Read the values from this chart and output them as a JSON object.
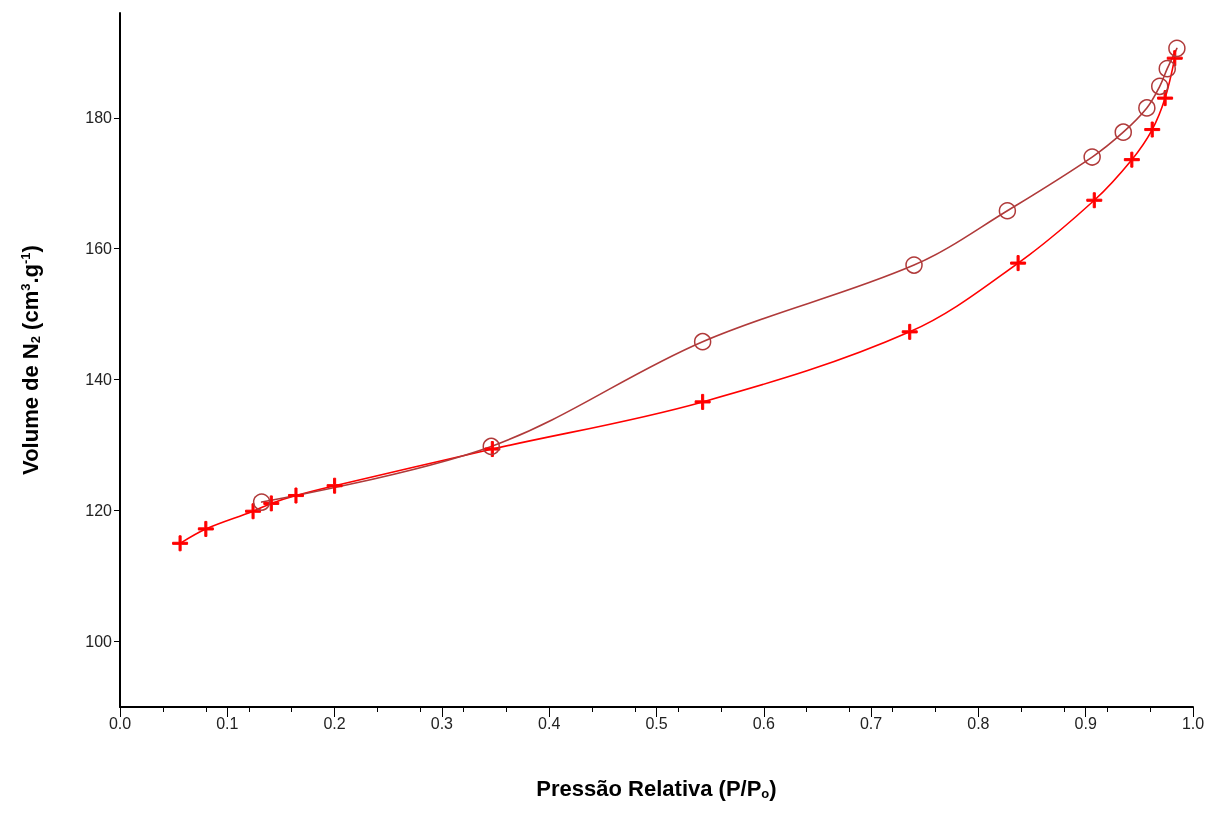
{
  "chart_data": {
    "type": "line",
    "xlabel": "Pressão Relativa (P/P$_{o}$)",
    "ylabel": "Volume de N$_{2}$ (cm$^{3}$.g$^{-1}$)",
    "xlim": [
      0,
      1
    ],
    "ylim": [
      90,
      196
    ],
    "xticks": [
      {
        "value": 0,
        "label": "0.0"
      },
      0.1,
      0.2,
      0.3,
      0.4,
      0.5,
      0.6,
      0.7,
      0.8,
      0.9,
      {
        "value": 1,
        "label": "1.0"
      }
    ],
    "yticks": [
      100,
      120,
      140,
      160,
      180
    ],
    "grid": false,
    "series": [
      {
        "color": "#ff0000",
        "marker": "cross",
        "x": [
          0.056,
          0.08,
          0.124,
          0.141,
          0.164,
          0.2,
          0.347,
          0.543,
          0.736,
          0.837,
          0.908,
          0.943,
          0.962,
          0.974,
          0.983
        ],
        "values": [
          115,
          117.2,
          119.9,
          121.1,
          122.3,
          123.8,
          129.4,
          136.6,
          147.3,
          157.8,
          167.4,
          173.6,
          178.2,
          183,
          189.1
        ]
      },
      {
        "color": "#b03a3a",
        "marker": "circle",
        "x": [
          0.132,
          0.346,
          0.543,
          0.74,
          0.827,
          0.906,
          0.935,
          0.957,
          0.969,
          0.976,
          0.985
        ],
        "values": [
          121.3,
          129.8,
          145.8,
          157.5,
          165.8,
          174,
          177.8,
          181.5,
          184.8,
          187.5,
          190.6
        ]
      }
    ]
  }
}
